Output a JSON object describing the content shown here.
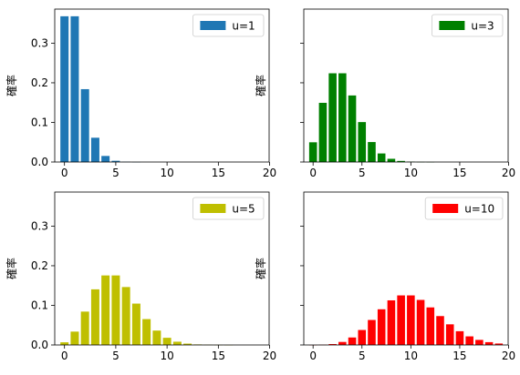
{
  "chart_data": [
    {
      "type": "bar",
      "x": [
        0,
        1,
        2,
        3,
        4,
        5,
        6,
        7,
        8,
        9,
        10,
        11,
        12,
        13,
        14,
        15,
        16,
        17,
        18,
        19
      ],
      "values": [
        0.3679,
        0.3679,
        0.1839,
        0.0613,
        0.0153,
        0.0031,
        0.0005,
        0.0001,
        0,
        0,
        0,
        0,
        0,
        0,
        0,
        0,
        0,
        0,
        0,
        0
      ],
      "series": [
        {
          "name": "u=1",
          "color": "#1f77b4"
        }
      ],
      "ylabel": "確率",
      "xticks": [
        "0",
        "5",
        "10",
        "15",
        "20"
      ],
      "yticks": [
        "0.0",
        "0.1",
        "0.2",
        "0.3"
      ],
      "show_xticklabels": true,
      "show_yticklabels": true,
      "ylim": [
        0,
        0.386
      ],
      "xlim": [
        -0.95,
        19.95
      ],
      "legend": "top-right",
      "grid": false
    },
    {
      "type": "bar",
      "x": [
        0,
        1,
        2,
        3,
        4,
        5,
        6,
        7,
        8,
        9,
        10,
        11,
        12,
        13,
        14,
        15,
        16,
        17,
        18,
        19
      ],
      "values": [
        0.0498,
        0.1494,
        0.224,
        0.224,
        0.168,
        0.1008,
        0.0504,
        0.0216,
        0.0081,
        0.0027,
        0.0008,
        0.0002,
        6e-05,
        0,
        0,
        0,
        0,
        0,
        0,
        0
      ],
      "series": [
        {
          "name": "u=3",
          "color": "#008000"
        }
      ],
      "ylabel": "確率",
      "xticks": [
        "0",
        "5",
        "10",
        "15",
        "20"
      ],
      "yticks": [
        "0.0",
        "0.1",
        "0.2",
        "0.3"
      ],
      "show_xticklabels": true,
      "show_yticklabels": false,
      "ylim": [
        0,
        0.386
      ],
      "xlim": [
        -0.95,
        19.95
      ],
      "legend": "top-right",
      "grid": false
    },
    {
      "type": "bar",
      "x": [
        0,
        1,
        2,
        3,
        4,
        5,
        6,
        7,
        8,
        9,
        10,
        11,
        12,
        13,
        14,
        15,
        16,
        17,
        18,
        19
      ],
      "values": [
        0.0067,
        0.0337,
        0.0842,
        0.1404,
        0.1755,
        0.1755,
        0.1462,
        0.1044,
        0.0653,
        0.0363,
        0.0181,
        0.0082,
        0.0034,
        0.0013,
        0.0005,
        0.0002,
        5e-05,
        0,
        0,
        0
      ],
      "series": [
        {
          "name": "u=5",
          "color": "#bfbf00"
        }
      ],
      "ylabel": "確率",
      "xticks": [
        "0",
        "5",
        "10",
        "15",
        "20"
      ],
      "yticks": [
        "0.0",
        "0.1",
        "0.2",
        "0.3"
      ],
      "show_xticklabels": true,
      "show_yticklabels": true,
      "ylim": [
        0,
        0.386
      ],
      "xlim": [
        -0.95,
        19.95
      ],
      "legend": "top-right",
      "grid": false
    },
    {
      "type": "bar",
      "x": [
        0,
        1,
        2,
        3,
        4,
        5,
        6,
        7,
        8,
        9,
        10,
        11,
        12,
        13,
        14,
        15,
        16,
        17,
        18,
        19
      ],
      "values": [
        5e-05,
        0.0005,
        0.0023,
        0.0076,
        0.0189,
        0.0378,
        0.0631,
        0.0901,
        0.1126,
        0.1251,
        0.1251,
        0.1137,
        0.0948,
        0.0729,
        0.0521,
        0.0347,
        0.0217,
        0.0128,
        0.0071,
        0.0037
      ],
      "series": [
        {
          "name": "u=10",
          "color": "#ff0000"
        }
      ],
      "ylabel": "確率",
      "xticks": [
        "0",
        "5",
        "10",
        "15",
        "20"
      ],
      "yticks": [
        "0.0",
        "0.1",
        "0.2",
        "0.3"
      ],
      "show_xticklabels": true,
      "show_yticklabels": false,
      "ylim": [
        0,
        0.386
      ],
      "xlim": [
        -0.95,
        19.95
      ],
      "legend": "top-right",
      "grid": false
    }
  ]
}
